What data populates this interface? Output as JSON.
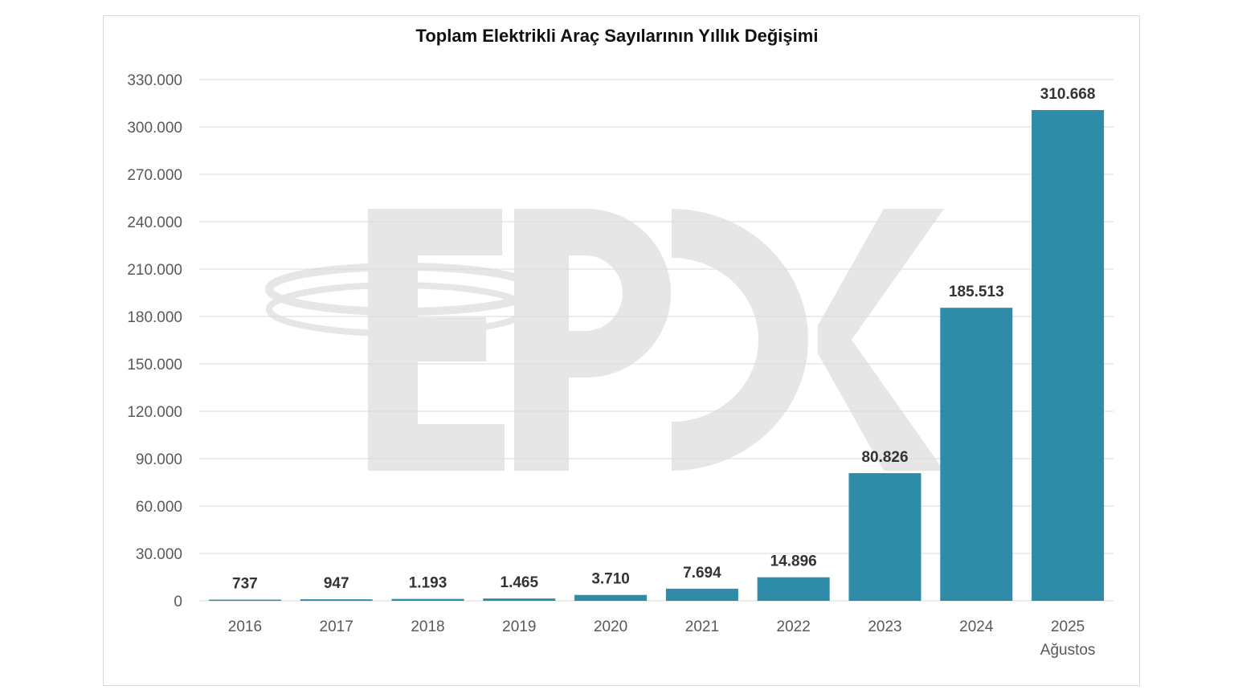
{
  "chart_data": {
    "type": "bar",
    "title": "Toplam Elektrikli Araç Sayılarının Yıllık Değişimi",
    "categories": [
      "2016",
      "2017",
      "2018",
      "2019",
      "2020",
      "2021",
      "2022",
      "2023",
      "2024",
      "2025\nAğustos"
    ],
    "values": [
      737,
      947,
      1193,
      1465,
      3710,
      7694,
      14896,
      80826,
      185513,
      310668
    ],
    "data_labels": [
      "737",
      "947",
      "1.193",
      "1.465",
      "3.710",
      "7.694",
      "14.896",
      "80.826",
      "185.513",
      "310.668"
    ],
    "xlabel": "",
    "ylabel": "",
    "ylim": [
      0,
      330000
    ],
    "yticks": [
      0,
      30000,
      60000,
      90000,
      120000,
      150000,
      180000,
      210000,
      240000,
      270000,
      300000,
      330000
    ],
    "ytick_labels": [
      "0",
      "30.000",
      "60.000",
      "90.000",
      "120.000",
      "150.000",
      "180.000",
      "210.000",
      "240.000",
      "270.000",
      "300.000",
      "330.000"
    ],
    "grid": true,
    "legend": "none",
    "bar_color": "#2e8ca8",
    "watermark_text": "EPDK"
  }
}
